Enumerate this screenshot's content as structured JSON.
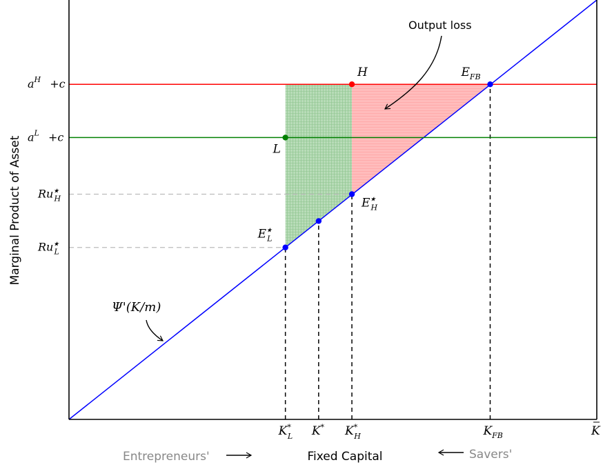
{
  "chart_data": {
    "type": "line",
    "title": "",
    "xlabel": "Fixed Capital",
    "ylabel": "Marginal Product of Asset",
    "xlim": [
      0,
      1
    ],
    "ylim": [
      0,
      1
    ],
    "grid": false,
    "x_ticks": [
      {
        "x": 0.41,
        "main": "K",
        "sup": "*",
        "sub": "L"
      },
      {
        "x": 0.473,
        "main": "K",
        "sup": "*",
        "sub": ""
      },
      {
        "x": 0.536,
        "main": "K",
        "sup": "*",
        "sub": "H"
      },
      {
        "x": 0.798,
        "main": "K",
        "sup": "",
        "sub": "FB"
      },
      {
        "x": 1.0,
        "main": "K",
        "sup": "",
        "sub": "",
        "bar": true
      }
    ],
    "y_ticks": [
      {
        "y": 0.799,
        "text": "a^H +c"
      },
      {
        "y": 0.672,
        "text": "a^L +c"
      },
      {
        "y": 0.537,
        "text": "Ru_H*"
      },
      {
        "y": 0.41,
        "text": "Ru_L*"
      }
    ],
    "series": [
      {
        "name": "Ψ'(K/m)",
        "color": "#0000ff",
        "points": [
          [
            0,
            0
          ],
          [
            1,
            1.0
          ]
        ]
      },
      {
        "name": "a^H +c",
        "color": "#ff0000",
        "points": [
          [
            0,
            0.799
          ],
          [
            1,
            0.799
          ]
        ]
      },
      {
        "name": "a^L +c",
        "color": "#008000",
        "points": [
          [
            0,
            0.672
          ],
          [
            1,
            0.672
          ]
        ]
      }
    ],
    "points": [
      {
        "label": "H",
        "x": 0.536,
        "y": 0.799,
        "color": "#ff0000"
      },
      {
        "label": "L",
        "x": 0.41,
        "y": 0.672,
        "color": "#008000"
      },
      {
        "label": "E_FB",
        "x": 0.798,
        "y": 0.799,
        "color": "#0000ff"
      },
      {
        "label": "E_H*",
        "x": 0.536,
        "y": 0.537,
        "color": "#0000ff"
      },
      {
        "label": "E_L*",
        "x": 0.41,
        "y": 0.41,
        "color": "#0000ff"
      },
      {
        "label": "",
        "x": 0.473,
        "y": 0.473,
        "color": "#0000ff"
      }
    ],
    "shaded_regions": [
      {
        "name": "green-region",
        "color": "#7fbf7f",
        "polygon": [
          [
            0.41,
            0.799
          ],
          [
            0.536,
            0.799
          ],
          [
            0.536,
            0.537
          ],
          [
            0.41,
            0.41
          ]
        ]
      },
      {
        "name": "output-loss-region",
        "color": "#ff9999",
        "polygon": [
          [
            0.536,
            0.799
          ],
          [
            0.798,
            0.799
          ],
          [
            0.536,
            0.537
          ]
        ]
      }
    ],
    "annotations": {
      "output_loss": "Output loss",
      "psi_label": "Ψ'(K/m)",
      "entrepreneurs": "Entrepreneurs'",
      "savers": "Savers'"
    },
    "colors": {
      "curve": "#0000ff",
      "high_line": "#ff0000",
      "low_line": "#008000",
      "green_fill": "#7fbf7f",
      "red_fill": "#ff9999",
      "guide_gray": "#bbbbbb",
      "side_text": "#888888"
    }
  }
}
